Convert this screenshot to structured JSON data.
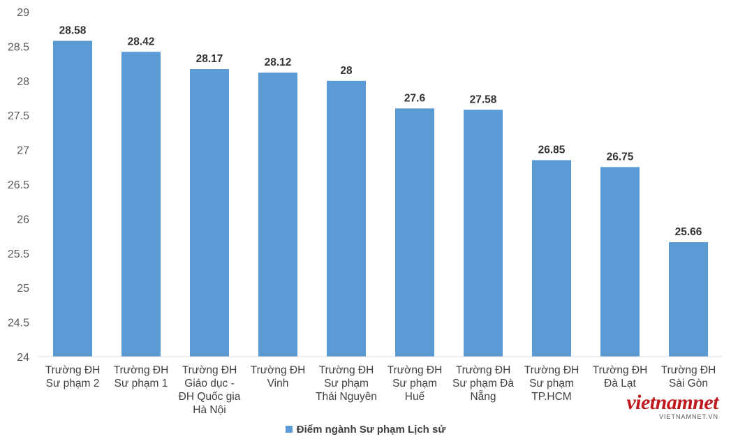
{
  "chart_data": {
    "type": "bar",
    "categories": [
      [
        "Trường ĐH",
        "Sư phạm 2"
      ],
      [
        "Trường ĐH",
        "Sư phạm 1"
      ],
      [
        "Trường ĐH",
        "Giáo dục -",
        "ĐH Quốc gia",
        "Hà Nội"
      ],
      [
        "Trường ĐH",
        "Vinh"
      ],
      [
        "Trường ĐH",
        "Sư phạm",
        "Thái Nguyên"
      ],
      [
        "Trường ĐH",
        "Sư phạm",
        "Huế"
      ],
      [
        "Trường ĐH",
        "Sư phạm Đà",
        "Nẵng"
      ],
      [
        "Trường ĐH",
        "Sư phạm",
        "TP.HCM"
      ],
      [
        "Trường ĐH",
        "Đà Lạt"
      ],
      [
        "Trường ĐH",
        "Sài Gòn"
      ]
    ],
    "series": [
      {
        "name": "Điểm ngành Sư phạm Lịch sử",
        "values": [
          28.58,
          28.42,
          28.17,
          28.12,
          28,
          27.6,
          27.58,
          26.85,
          26.75,
          25.66
        ],
        "value_labels": [
          "28.58",
          "28.42",
          "28.17",
          "28.12",
          "28",
          "27.6",
          "27.58",
          "26.85",
          "26.75",
          "25.66"
        ],
        "color": "#5b9bd5"
      }
    ],
    "y_ticks": [
      "24",
      "24.5",
      "25",
      "25.5",
      "26",
      "26.5",
      "27",
      "27.5",
      "28",
      "28.5",
      "29"
    ],
    "ylim": [
      24,
      29
    ],
    "grid": false,
    "legend": "bottom"
  },
  "legend": {
    "label": "Điểm ngành Sư phạm Lịch sử"
  },
  "watermark": {
    "logo": "vietnamnet",
    "url": "VIETNAMNET.VN"
  },
  "colors": {
    "bar": "#5b9bd5",
    "axis": "#d9d9d9",
    "logo": "#c0181e"
  }
}
